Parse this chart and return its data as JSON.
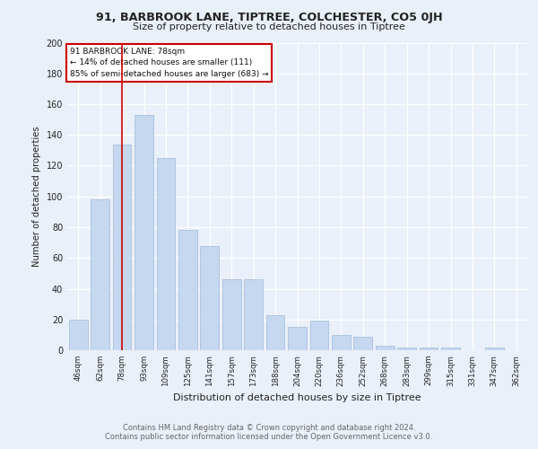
{
  "title1": "91, BARBROOK LANE, TIPTREE, COLCHESTER, CO5 0JH",
  "title2": "Size of property relative to detached houses in Tiptree",
  "xlabel": "Distribution of detached houses by size in Tiptree",
  "ylabel": "Number of detached properties",
  "footer1": "Contains HM Land Registry data © Crown copyright and database right 2024.",
  "footer2": "Contains public sector information licensed under the Open Government Licence v3.0.",
  "categories": [
    "46sqm",
    "62sqm",
    "78sqm",
    "93sqm",
    "109sqm",
    "125sqm",
    "141sqm",
    "157sqm",
    "173sqm",
    "188sqm",
    "204sqm",
    "220sqm",
    "236sqm",
    "252sqm",
    "268sqm",
    "283sqm",
    "299sqm",
    "315sqm",
    "331sqm",
    "347sqm",
    "362sqm"
  ],
  "values": [
    20,
    98,
    134,
    153,
    125,
    78,
    68,
    46,
    46,
    23,
    15,
    19,
    10,
    9,
    3,
    2,
    2,
    2,
    0,
    2,
    0
  ],
  "bar_color": "#c5d8f0",
  "bar_edge_color": "#a0b8d8",
  "highlight_x": "78sqm",
  "highlight_color": "#cc0000",
  "annotation_lines": [
    "91 BARBROOK LANE: 78sqm",
    "← 14% of detached houses are smaller (111)",
    "85% of semi-detached houses are larger (683) →"
  ],
  "annotation_box_color": "#ffffff",
  "annotation_box_edge": "#cc0000",
  "ylim": [
    0,
    200
  ],
  "yticks": [
    0,
    20,
    40,
    60,
    80,
    100,
    120,
    140,
    160,
    180,
    200
  ],
  "bg_color": "#eaf0f9",
  "plot_bg_color": "#eaf0f9",
  "grid_color": "#ffffff"
}
